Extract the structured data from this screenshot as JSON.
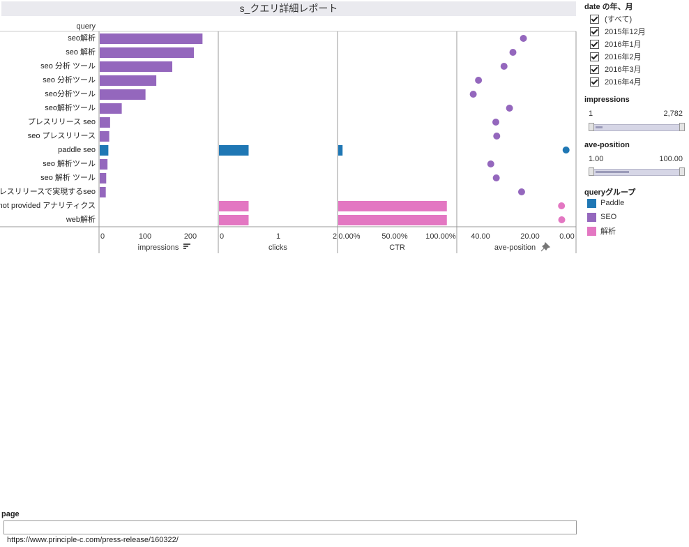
{
  "report_title": "s_クエリ詳細レポート",
  "query_header": "query",
  "colors": {
    "SEO": "#9467bd",
    "Paddle": "#1f77b4",
    "解析": "#e377c2"
  },
  "chart_data": {
    "type": "bar",
    "categories": [
      "seo解析",
      "seo 解析",
      "seo 分析 ツール",
      "seo 分析ツール",
      "seo分析ツール",
      "seo解析ツール",
      "プレスリリース seo",
      "seo プレスリリース",
      "paddle seo",
      "seo 解析ツール",
      "seo 解析 ツール",
      "プレスリリースで実現するseo",
      "not provided アナリティクス",
      "web解析"
    ],
    "groups": [
      "SEO",
      "SEO",
      "SEO",
      "SEO",
      "SEO",
      "SEO",
      "SEO",
      "SEO",
      "Paddle",
      "SEO",
      "SEO",
      "SEO",
      "解析",
      "解析"
    ],
    "panels": [
      {
        "key": "impressions",
        "label": "impressions",
        "type": "bar",
        "ticks": [
          "0",
          "100",
          "200"
        ],
        "range": [
          0,
          260
        ],
        "values": [
          238,
          218,
          168,
          131,
          106,
          51,
          24,
          22,
          20,
          18,
          15,
          14,
          null,
          null
        ]
      },
      {
        "key": "clicks",
        "label": "clicks",
        "type": "bar",
        "ticks": [
          "0",
          "1",
          "2"
        ],
        "range": [
          0,
          2
        ],
        "values": [
          null,
          null,
          null,
          null,
          null,
          null,
          null,
          null,
          1,
          null,
          null,
          null,
          1,
          1
        ]
      },
      {
        "key": "CTR",
        "label": "CTR",
        "type": "bar",
        "ticks": [
          "0.00%",
          "50.00%",
          "100.00%"
        ],
        "range": [
          0,
          1.04
        ],
        "values": [
          null,
          null,
          null,
          null,
          null,
          null,
          null,
          null,
          0.04,
          null,
          null,
          null,
          1.0,
          1.0
        ]
      },
      {
        "key": "ave-position",
        "label": "ave-position",
        "type": "scatter",
        "reversed": true,
        "ticks": [
          "40.00",
          "20.00",
          "0.00"
        ],
        "range": [
          48,
          0
        ],
        "values": [
          19.7,
          24.3,
          28.2,
          39.4,
          41.7,
          25.8,
          31.8,
          31.4,
          1.0,
          34.0,
          31.6,
          20.5,
          3.0,
          2.9
        ]
      }
    ]
  },
  "sidebar": {
    "date_title": "date の年、月",
    "date_options": [
      "(すべて)",
      "2015年12月",
      "2016年1月",
      "2016年2月",
      "2016年3月",
      "2016年4月"
    ],
    "impressions_title": "impressions",
    "impressions_min": "1",
    "impressions_max": "2,782",
    "aveposition_title": "ave-position",
    "aveposition_min": "1.00",
    "aveposition_max": "100.00",
    "legend_title": "queryグループ",
    "legend_items": [
      {
        "label": "Paddle",
        "color": "#1f77b4"
      },
      {
        "label": "SEO",
        "color": "#9467bd"
      },
      {
        "label": "解析",
        "color": "#e377c2"
      }
    ]
  },
  "page_filter": {
    "label": "page",
    "value": "",
    "shown_value": "https://www.principle-c.com/press-release/160322/"
  },
  "icons": {
    "sort": "sort-descending-icon",
    "pin": "pin-icon"
  }
}
